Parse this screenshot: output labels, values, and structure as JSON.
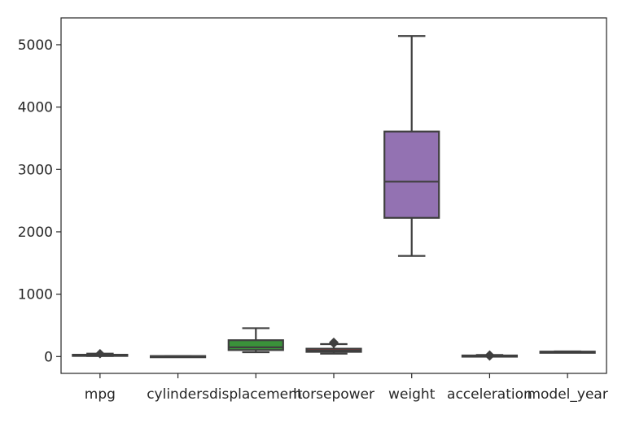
{
  "chart_data": {
    "type": "boxplot",
    "categories": [
      "mpg",
      "cylinders",
      "displacement",
      "horsepower",
      "weight",
      "acceleration",
      "model_year"
    ],
    "ylim": [
      -270,
      5430
    ],
    "yticks": [
      0,
      1000,
      2000,
      3000,
      4000,
      5000
    ],
    "grid": false,
    "colors": [
      "#3274a1",
      "#e1812c",
      "#3a923a",
      "#c03d3e",
      "#9372b2",
      "#845b53",
      "#d684bd"
    ],
    "edge_color": "#3f3f3f",
    "boxes": [
      {
        "name": "mpg",
        "whislo": 9,
        "q1": 17.5,
        "med": 23,
        "q3": 29,
        "whishi": 46.6,
        "fliers": [
          44,
          46.6
        ]
      },
      {
        "name": "cylinders",
        "whislo": 3,
        "q1": 4,
        "med": 4,
        "q3": 8,
        "whishi": 8,
        "fliers": []
      },
      {
        "name": "displacement",
        "whislo": 68,
        "q1": 104,
        "med": 148.5,
        "q3": 262,
        "whishi": 455,
        "fliers": []
      },
      {
        "name": "horsepower",
        "whislo": 46,
        "q1": 75,
        "med": 93.5,
        "q3": 126,
        "whishi": 200,
        "fliers": [
          210,
          215,
          220,
          225,
          230
        ]
      },
      {
        "name": "weight",
        "whislo": 1613,
        "q1": 2224,
        "med": 2804,
        "q3": 3608,
        "whishi": 5140,
        "fliers": []
      },
      {
        "name": "acceleration",
        "whislo": 8,
        "q1": 13.8,
        "med": 15.5,
        "q3": 17.2,
        "whishi": 24.8,
        "fliers": [
          8,
          8.5,
          22.2,
          23.5,
          24.6
        ]
      },
      {
        "name": "model_year",
        "whislo": 70,
        "q1": 73,
        "med": 76,
        "q3": 79,
        "whishi": 82,
        "fliers": []
      }
    ]
  }
}
